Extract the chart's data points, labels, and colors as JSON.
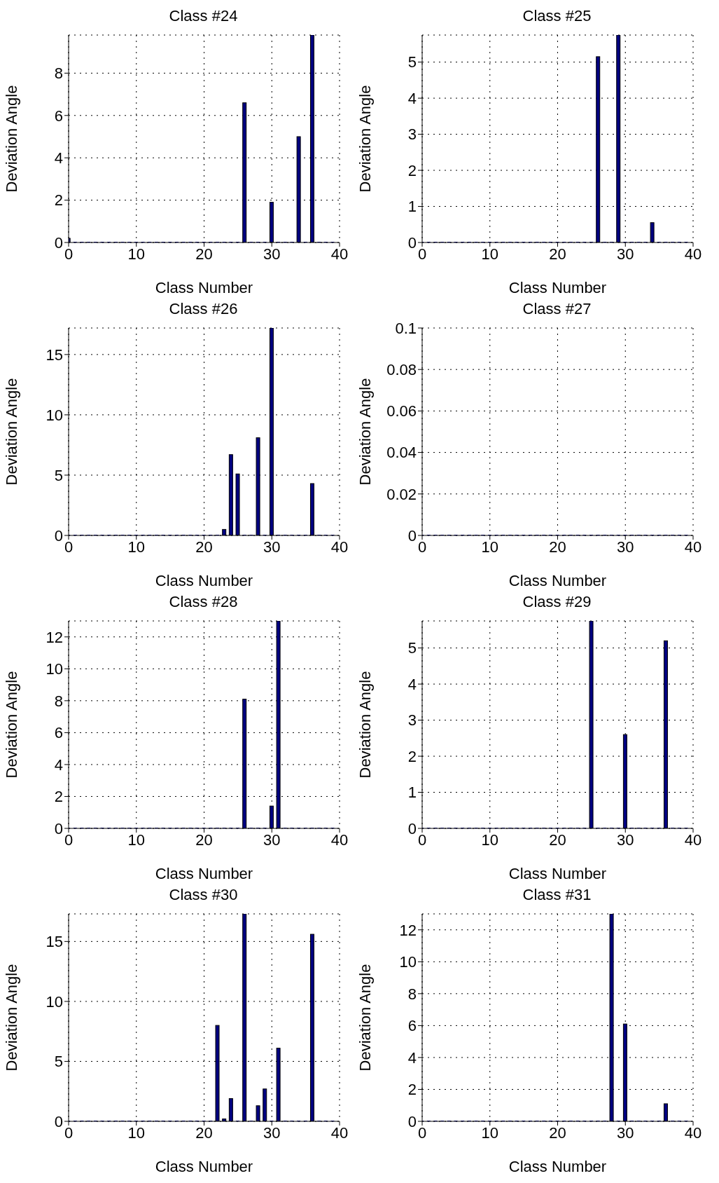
{
  "chart_data": [
    {
      "type": "bar",
      "title": "Class #24",
      "xlabel": "Class Number",
      "ylabel": "Deviation Angle",
      "x": [
        0,
        1,
        2,
        3,
        4,
        5,
        6,
        7,
        8,
        9,
        10,
        11,
        12,
        13,
        14,
        15,
        16,
        17,
        18,
        19,
        20,
        21,
        22,
        23,
        24,
        25,
        26,
        27,
        28,
        29,
        30,
        31,
        32,
        33,
        34,
        35,
        36,
        37,
        38,
        39
      ],
      "values": [
        0.2,
        0,
        0,
        0,
        0,
        0,
        0,
        0,
        0,
        0,
        0,
        0,
        0,
        0,
        0,
        0,
        0,
        0,
        0,
        0,
        0,
        0,
        0,
        0,
        0,
        0,
        6.6,
        0,
        0,
        0,
        1.9,
        0,
        0,
        0,
        5.0,
        0,
        9.8,
        0,
        0,
        0
      ],
      "color": "#000080",
      "xlim": [
        0,
        40
      ],
      "xticks": [
        0,
        10,
        20,
        30,
        40
      ],
      "ylim": [
        0,
        9.8
      ],
      "yticks": [
        0,
        2,
        4,
        6,
        8
      ],
      "grid": true
    },
    {
      "type": "bar",
      "title": "Class #25",
      "xlabel": "Class Number",
      "ylabel": "Deviation Angle",
      "x": [
        0,
        1,
        2,
        3,
        4,
        5,
        6,
        7,
        8,
        9,
        10,
        11,
        12,
        13,
        14,
        15,
        16,
        17,
        18,
        19,
        20,
        21,
        22,
        23,
        24,
        25,
        26,
        27,
        28,
        29,
        30,
        31,
        32,
        33,
        34,
        35,
        36,
        37,
        38,
        39
      ],
      "values": [
        0,
        0,
        0,
        0,
        0,
        0,
        0,
        0,
        0,
        0,
        0,
        0,
        0,
        0,
        0,
        0,
        0,
        0,
        0,
        0,
        0,
        0,
        0,
        0,
        0,
        0,
        5.15,
        0,
        0,
        5.75,
        0,
        0,
        0,
        0,
        0.55,
        0,
        0,
        0,
        0,
        0
      ],
      "color": "#000080",
      "xlim": [
        0,
        40
      ],
      "xticks": [
        0,
        10,
        20,
        30,
        40
      ],
      "ylim": [
        0,
        5.75
      ],
      "yticks": [
        0,
        1,
        2,
        3,
        4,
        5
      ],
      "grid": true
    },
    {
      "type": "bar",
      "title": "Class #26",
      "xlabel": "Class Number",
      "ylabel": "Deviation Angle",
      "x": [
        0,
        1,
        2,
        3,
        4,
        5,
        6,
        7,
        8,
        9,
        10,
        11,
        12,
        13,
        14,
        15,
        16,
        17,
        18,
        19,
        20,
        21,
        22,
        23,
        24,
        25,
        26,
        27,
        28,
        29,
        30,
        31,
        32,
        33,
        34,
        35,
        36,
        37,
        38,
        39
      ],
      "values": [
        0,
        0,
        0,
        0,
        0,
        0,
        0,
        0,
        0,
        0,
        0,
        0,
        0,
        0,
        0,
        0,
        0,
        0,
        0,
        0,
        0,
        0,
        0,
        0.5,
        6.7,
        5.1,
        0,
        0,
        8.1,
        0,
        17.2,
        0,
        0,
        0,
        0,
        0,
        4.3,
        0,
        0,
        0
      ],
      "color": "#000080",
      "xlim": [
        0,
        40
      ],
      "xticks": [
        0,
        10,
        20,
        30,
        40
      ],
      "ylim": [
        0,
        17.2
      ],
      "yticks": [
        0,
        5,
        10,
        15
      ],
      "grid": true
    },
    {
      "type": "bar",
      "title": "Class #27",
      "xlabel": "Class Number",
      "ylabel": "Deviation Angle",
      "x": [
        0,
        1,
        2,
        3,
        4,
        5,
        6,
        7,
        8,
        9,
        10,
        11,
        12,
        13,
        14,
        15,
        16,
        17,
        18,
        19,
        20,
        21,
        22,
        23,
        24,
        25,
        26,
        27,
        28,
        29,
        30,
        31,
        32,
        33,
        34,
        35,
        36,
        37,
        38,
        39
      ],
      "values": [
        0,
        0,
        0,
        0,
        0,
        0,
        0,
        0,
        0,
        0,
        0,
        0,
        0,
        0,
        0,
        0,
        0,
        0,
        0,
        0,
        0,
        0,
        0,
        0,
        0,
        0,
        0,
        0,
        0,
        0,
        0,
        0,
        0,
        0,
        0,
        0,
        0,
        0,
        0,
        0
      ],
      "color": "#000080",
      "xlim": [
        0,
        40
      ],
      "xticks": [
        0,
        10,
        20,
        30,
        40
      ],
      "ylim": [
        0,
        0.1
      ],
      "yticks": [
        0,
        0.02,
        0.04,
        0.06,
        0.08,
        0.1
      ],
      "grid": true
    },
    {
      "type": "bar",
      "title": "Class #28",
      "xlabel": "Class Number",
      "ylabel": "Deviation Angle",
      "x": [
        0,
        1,
        2,
        3,
        4,
        5,
        6,
        7,
        8,
        9,
        10,
        11,
        12,
        13,
        14,
        15,
        16,
        17,
        18,
        19,
        20,
        21,
        22,
        23,
        24,
        25,
        26,
        27,
        28,
        29,
        30,
        31,
        32,
        33,
        34,
        35,
        36,
        37,
        38,
        39
      ],
      "values": [
        0,
        0,
        0,
        0,
        0,
        0,
        0,
        0,
        0,
        0,
        0,
        0,
        0,
        0,
        0,
        0,
        0,
        0,
        0,
        0,
        0,
        0,
        0,
        0,
        0,
        0,
        8.1,
        0,
        0,
        0,
        1.4,
        13,
        0,
        0,
        0,
        0,
        0,
        0,
        0,
        0
      ],
      "color": "#000080",
      "xlim": [
        0,
        40
      ],
      "xticks": [
        0,
        10,
        20,
        30,
        40
      ],
      "ylim": [
        0,
        13
      ],
      "yticks": [
        0,
        2,
        4,
        6,
        8,
        10,
        12
      ],
      "grid": true
    },
    {
      "type": "bar",
      "title": "Class #29",
      "xlabel": "Class Number",
      "ylabel": "Deviation Angle",
      "x": [
        0,
        1,
        2,
        3,
        4,
        5,
        6,
        7,
        8,
        9,
        10,
        11,
        12,
        13,
        14,
        15,
        16,
        17,
        18,
        19,
        20,
        21,
        22,
        23,
        24,
        25,
        26,
        27,
        28,
        29,
        30,
        31,
        32,
        33,
        34,
        35,
        36,
        37,
        38,
        39
      ],
      "values": [
        0,
        0,
        0,
        0,
        0,
        0,
        0,
        0,
        0,
        0,
        0,
        0,
        0,
        0,
        0,
        0,
        0,
        0,
        0,
        0,
        0,
        0,
        0,
        0,
        0,
        5.75,
        0,
        0,
        0,
        0,
        2.6,
        0,
        0,
        0,
        0,
        0,
        5.2,
        0,
        0,
        0
      ],
      "color": "#000080",
      "xlim": [
        0,
        40
      ],
      "xticks": [
        0,
        10,
        20,
        30,
        40
      ],
      "ylim": [
        0,
        5.75
      ],
      "yticks": [
        0,
        1,
        2,
        3,
        4,
        5
      ],
      "grid": true
    },
    {
      "type": "bar",
      "title": "Class #30",
      "xlabel": "Class Number",
      "ylabel": "Deviation Angle",
      "x": [
        0,
        1,
        2,
        3,
        4,
        5,
        6,
        7,
        8,
        9,
        10,
        11,
        12,
        13,
        14,
        15,
        16,
        17,
        18,
        19,
        20,
        21,
        22,
        23,
        24,
        25,
        26,
        27,
        28,
        29,
        30,
        31,
        32,
        33,
        34,
        35,
        36,
        37,
        38,
        39
      ],
      "values": [
        0,
        0,
        0,
        0,
        0,
        0,
        0,
        0,
        0,
        0,
        0,
        0,
        0,
        0,
        0,
        0,
        0,
        0,
        0,
        0,
        0,
        0,
        8.0,
        0.2,
        1.9,
        0,
        17.3,
        0,
        1.3,
        2.7,
        0,
        6.1,
        0,
        0,
        0,
        0,
        15.6,
        0,
        0,
        0
      ],
      "color": "#000080",
      "xlim": [
        0,
        40
      ],
      "xticks": [
        0,
        10,
        20,
        30,
        40
      ],
      "ylim": [
        0,
        17.3
      ],
      "yticks": [
        0,
        5,
        10,
        15
      ],
      "grid": true
    },
    {
      "type": "bar",
      "title": "Class #31",
      "xlabel": "Class Number",
      "ylabel": "Deviation Angle",
      "x": [
        0,
        1,
        2,
        3,
        4,
        5,
        6,
        7,
        8,
        9,
        10,
        11,
        12,
        13,
        14,
        15,
        16,
        17,
        18,
        19,
        20,
        21,
        22,
        23,
        24,
        25,
        26,
        27,
        28,
        29,
        30,
        31,
        32,
        33,
        34,
        35,
        36,
        37,
        38,
        39
      ],
      "values": [
        0,
        0,
        0,
        0,
        0,
        0,
        0,
        0,
        0,
        0,
        0,
        0,
        0,
        0,
        0,
        0,
        0,
        0,
        0,
        0,
        0,
        0,
        0,
        0,
        0,
        0,
        0,
        0,
        13,
        0,
        6.1,
        0,
        0,
        0,
        0,
        0,
        1.1,
        0,
        0,
        0
      ],
      "color": "#000080",
      "xlim": [
        0,
        40
      ],
      "xticks": [
        0,
        10,
        20,
        30,
        40
      ],
      "ylim": [
        0,
        13
      ],
      "yticks": [
        0,
        2,
        4,
        6,
        8,
        10,
        12
      ],
      "grid": true
    }
  ]
}
